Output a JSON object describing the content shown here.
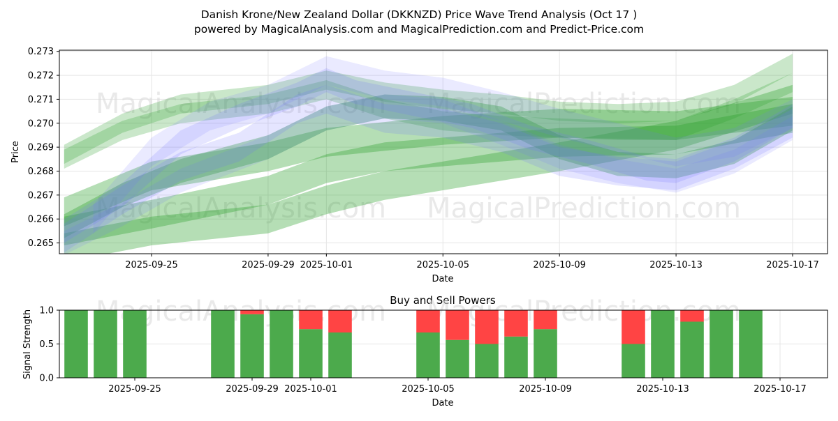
{
  "title_line1": "Danish Krone/New Zealand Dollar (DKKNZD) Price Wave Trend Analysis (Oct 17 )",
  "title_line2": "powered by MagicalAnalysis.com and MagicalPrediction.com and Predict-Price.com",
  "watermarks": [
    "MagicalAnalysis.com",
    "MagicalPrediction.com"
  ],
  "colors": {
    "wave_green": "#2ca02c",
    "wave_blue": "#6f6fff",
    "buy": "#4caa4c",
    "sell": "#ff4444",
    "grid": "#e5e5e5",
    "watermark": "#e0e0e0"
  },
  "chart_data": [
    {
      "type": "area",
      "name": "price-wave",
      "xlabel": "Date",
      "ylabel": "Price",
      "x_ticks": [
        "2025-09-25",
        "2025-09-29",
        "2025-10-01",
        "2025-10-05",
        "2025-10-09",
        "2025-10-13",
        "2025-10-17"
      ],
      "y_ticks": [
        "0.265",
        "0.266",
        "0.267",
        "0.268",
        "0.269",
        "0.270",
        "0.271",
        "0.272",
        "0.273"
      ],
      "xlim": [
        "2025-09-21",
        "2025-10-18"
      ],
      "ylim": [
        0.26455,
        0.27305
      ],
      "grid": true,
      "bands": [
        {
          "color": "green",
          "opacity": 0.35,
          "width": 0.0012,
          "points": [
            [
              "2025-09-22",
              0.2655
            ],
            [
              "2025-09-25",
              0.2662
            ],
            [
              "2025-09-29",
              0.2672
            ],
            [
              "2025-10-01",
              0.2681
            ],
            [
              "2025-10-03",
              0.2686
            ],
            [
              "2025-10-05",
              0.2688
            ],
            [
              "2025-10-09",
              0.2692
            ],
            [
              "2025-10-13",
              0.2693
            ],
            [
              "2025-10-17",
              0.2702
            ]
          ]
        },
        {
          "color": "green",
          "opacity": 0.35,
          "width": 0.0012,
          "points": [
            [
              "2025-09-22",
              0.2663
            ],
            [
              "2025-09-25",
              0.2678
            ],
            [
              "2025-09-29",
              0.2686
            ],
            [
              "2025-10-01",
              0.2692
            ],
            [
              "2025-10-05",
              0.2697
            ],
            [
              "2025-10-09",
              0.27
            ],
            [
              "2025-10-13",
              0.2699
            ],
            [
              "2025-10-17",
              0.2705
            ]
          ]
        },
        {
          "color": "green",
          "opacity": 0.35,
          "width": 0.0012,
          "points": [
            [
              "2025-09-22",
              0.2648
            ],
            [
              "2025-09-25",
              0.2655
            ],
            [
              "2025-09-29",
              0.266
            ],
            [
              "2025-10-01",
              0.2668
            ],
            [
              "2025-10-03",
              0.2674
            ],
            [
              "2025-10-05",
              0.2678
            ],
            [
              "2025-10-09",
              0.2686
            ],
            [
              "2025-10-13",
              0.2695
            ],
            [
              "2025-10-17",
              0.271
            ]
          ]
        },
        {
          "color": "green",
          "opacity": 0.35,
          "width": 0.001,
          "points": [
            [
              "2025-09-22",
              0.2657
            ],
            [
              "2025-09-24",
              0.267
            ],
            [
              "2025-09-26",
              0.268
            ],
            [
              "2025-09-29",
              0.269
            ],
            [
              "2025-10-01",
              0.2702
            ],
            [
              "2025-10-03",
              0.2707
            ],
            [
              "2025-10-05",
              0.2706
            ],
            [
              "2025-10-07",
              0.2702
            ],
            [
              "2025-10-09",
              0.269
            ],
            [
              "2025-10-11",
              0.2683
            ],
            [
              "2025-10-13",
              0.2682
            ],
            [
              "2025-10-15",
              0.2688
            ],
            [
              "2025-10-17",
              0.2702
            ]
          ]
        },
        {
          "color": "green",
          "opacity": 0.25,
          "width": 0.0008,
          "points": [
            [
              "2025-09-22",
              0.2687
            ],
            [
              "2025-09-24",
              0.27
            ],
            [
              "2025-09-26",
              0.2708
            ],
            [
              "2025-09-29",
              0.2712
            ],
            [
              "2025-10-01",
              0.2718
            ],
            [
              "2025-10-03",
              0.2713
            ],
            [
              "2025-10-05",
              0.271
            ],
            [
              "2025-10-07",
              0.2708
            ],
            [
              "2025-10-09",
              0.2705
            ],
            [
              "2025-10-11",
              0.2704
            ],
            [
              "2025-10-13",
              0.2705
            ],
            [
              "2025-10-15",
              0.2712
            ],
            [
              "2025-10-17",
              0.2725
            ]
          ]
        },
        {
          "color": "green",
          "opacity": 0.25,
          "width": 0.0008,
          "points": [
            [
              "2025-09-22",
              0.2685
            ],
            [
              "2025-09-24",
              0.2697
            ],
            [
              "2025-09-26",
              0.2704
            ],
            [
              "2025-09-29",
              0.2708
            ],
            [
              "2025-10-01",
              0.2714
            ],
            [
              "2025-10-03",
              0.2706
            ],
            [
              "2025-10-05",
              0.2701
            ],
            [
              "2025-10-07",
              0.2699
            ],
            [
              "2025-10-09",
              0.2698
            ],
            [
              "2025-10-11",
              0.2697
            ],
            [
              "2025-10-13",
              0.2697
            ],
            [
              "2025-10-15",
              0.2706
            ],
            [
              "2025-10-17",
              0.2717
            ]
          ]
        },
        {
          "color": "blue",
          "opacity": 0.18,
          "width": 0.001,
          "points": [
            [
              "2025-09-22",
              0.2655
            ],
            [
              "2025-09-24",
              0.267
            ],
            [
              "2025-09-26",
              0.2692
            ],
            [
              "2025-09-28",
              0.2703
            ],
            [
              "2025-09-30",
              0.2712
            ],
            [
              "2025-10-01",
              0.2718
            ],
            [
              "2025-10-02",
              0.2713
            ],
            [
              "2025-10-04",
              0.2708
            ],
            [
              "2025-10-06",
              0.2703
            ],
            [
              "2025-10-08",
              0.2694
            ],
            [
              "2025-10-10",
              0.2688
            ],
            [
              "2025-10-12",
              0.2681
            ],
            [
              "2025-10-13",
              0.268
            ],
            [
              "2025-10-15",
              0.2689
            ],
            [
              "2025-10-17",
              0.2703
            ]
          ]
        },
        {
          "color": "blue",
          "opacity": 0.18,
          "width": 0.0012,
          "points": [
            [
              "2025-09-22",
              0.2652
            ],
            [
              "2025-09-24",
              0.2668
            ],
            [
              "2025-09-26",
              0.2682
            ],
            [
              "2025-09-28",
              0.269
            ],
            [
              "2025-09-30",
              0.2706
            ],
            [
              "2025-10-01",
              0.271
            ],
            [
              "2025-10-03",
              0.2702
            ],
            [
              "2025-10-05",
              0.27
            ],
            [
              "2025-10-07",
              0.2694
            ],
            [
              "2025-10-09",
              0.2684
            ],
            [
              "2025-10-11",
              0.268
            ],
            [
              "2025-10-13",
              0.2678
            ],
            [
              "2025-10-15",
              0.2687
            ],
            [
              "2025-10-17",
              0.27
            ]
          ]
        },
        {
          "color": "blue",
          "opacity": 0.15,
          "width": 0.0012,
          "points": [
            [
              "2025-09-23",
              0.266
            ],
            [
              "2025-09-25",
              0.2688
            ],
            [
              "2025-09-27",
              0.2703
            ],
            [
              "2025-09-29",
              0.271
            ],
            [
              "2025-10-01",
              0.2722
            ],
            [
              "2025-10-03",
              0.2716
            ],
            [
              "2025-10-05",
              0.2713
            ],
            [
              "2025-10-07",
              0.2707
            ],
            [
              "2025-10-09",
              0.27
            ],
            [
              "2025-10-11",
              0.2694
            ],
            [
              "2025-10-13",
              0.2688
            ],
            [
              "2025-10-15",
              0.2692
            ],
            [
              "2025-10-17",
              0.2704
            ]
          ]
        },
        {
          "color": "blue",
          "opacity": 0.15,
          "width": 0.001,
          "points": [
            [
              "2025-09-22",
              0.265
            ],
            [
              "2025-09-24",
              0.2662
            ],
            [
              "2025-09-26",
              0.2676
            ],
            [
              "2025-09-29",
              0.269
            ],
            [
              "2025-10-01",
              0.2702
            ],
            [
              "2025-10-03",
              0.2707
            ],
            [
              "2025-10-05",
              0.2705
            ],
            [
              "2025-10-07",
              0.2696
            ],
            [
              "2025-10-09",
              0.2686
            ],
            [
              "2025-10-11",
              0.268
            ],
            [
              "2025-10-13",
              0.2676
            ],
            [
              "2025-10-15",
              0.2684
            ],
            [
              "2025-10-17",
              0.2698
            ]
          ]
        }
      ]
    },
    {
      "type": "bar",
      "name": "buy-sell-powers",
      "title": "Buy and Sell Powers",
      "xlabel": "Date",
      "ylabel": "Signal Strength",
      "x_ticks": [
        "2025-09-25",
        "2025-09-29",
        "2025-10-01",
        "2025-10-05",
        "2025-10-09",
        "2025-10-13",
        "2025-10-17"
      ],
      "y_ticks": [
        "0.0",
        "0.5",
        "1.0"
      ],
      "ylim": [
        0,
        1
      ],
      "categories": [
        "2025-09-23",
        "2025-09-24",
        "2025-09-25",
        "2025-09-28",
        "2025-09-29",
        "2025-09-30",
        "2025-10-01",
        "2025-10-02",
        "2025-10-05",
        "2025-10-06",
        "2025-10-07",
        "2025-10-08",
        "2025-10-09",
        "2025-10-12",
        "2025-10-13",
        "2025-10-14",
        "2025-10-15",
        "2025-10-16"
      ],
      "series": [
        {
          "name": "Buy",
          "values": [
            1.0,
            1.0,
            1.0,
            1.0,
            0.94,
            1.0,
            0.72,
            0.67,
            0.67,
            0.56,
            0.5,
            0.61,
            0.72,
            0.5,
            1.0,
            0.83,
            1.0,
            1.0
          ]
        },
        {
          "name": "Sell",
          "values": [
            0.0,
            0.0,
            0.0,
            0.0,
            0.06,
            0.0,
            0.28,
            0.33,
            0.33,
            0.44,
            0.5,
            0.39,
            0.28,
            0.5,
            0.0,
            0.17,
            0.0,
            0.0
          ]
        }
      ]
    }
  ]
}
